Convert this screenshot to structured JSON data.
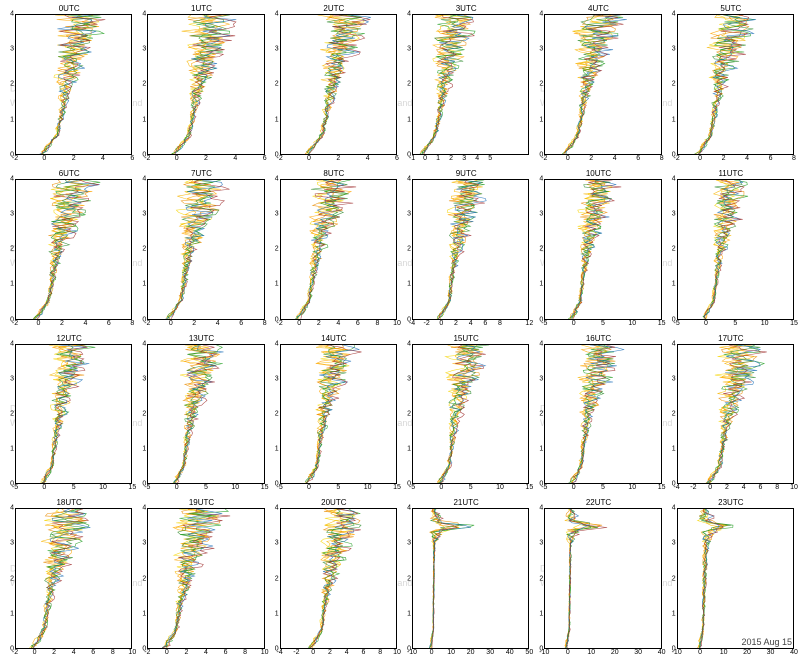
{
  "date_label": "2015 Aug 15",
  "watermark_text_line1": "Deutscher Wetterdienst",
  "watermark_text_line2": "Wetter und Klima aus einer Hand",
  "global": {
    "background_color": "#ffffff",
    "axis_color": "#000000",
    "title_fontsize": 8,
    "tick_fontsize": 7,
    "line_width": 0.5,
    "ylim": [
      0,
      4
    ],
    "yticks": [
      0,
      1,
      2,
      3,
      4
    ],
    "n_profiles": 8,
    "profile_colors": [
      "#f5d400",
      "#f7b500",
      "#ffa500",
      "#e98b00",
      "#2e8b2e",
      "#1f9d1f",
      "#1d6fb8",
      "#a03030"
    ]
  },
  "panels": [
    {
      "title": "0UTC",
      "xlim": [
        -2,
        6
      ],
      "xticks": [
        -2,
        0,
        2,
        4,
        6
      ],
      "spread": [
        0.4,
        0.3,
        0.35,
        0.6,
        1.1,
        1.8,
        2.4,
        2.9,
        3.1
      ],
      "base": [
        -0.2,
        0.8,
        1.1,
        1.3,
        1.5,
        1.8,
        2.1,
        2.3,
        2.5
      ]
    },
    {
      "title": "1UTC",
      "xlim": [
        -2,
        6
      ],
      "xticks": [
        -2,
        0,
        2,
        4,
        6
      ],
      "spread": [
        0.4,
        0.3,
        0.35,
        0.6,
        1.1,
        1.8,
        2.4,
        2.9,
        3.1
      ],
      "base": [
        -0.2,
        0.8,
        1.1,
        1.3,
        1.5,
        1.8,
        2.1,
        2.3,
        2.5
      ]
    },
    {
      "title": "2UTC",
      "xlim": [
        -2,
        6
      ],
      "xticks": [
        -2,
        0,
        2,
        4,
        6
      ],
      "spread": [
        0.4,
        0.3,
        0.35,
        0.6,
        1.1,
        1.8,
        2.4,
        2.9,
        3.1
      ],
      "base": [
        -0.2,
        0.8,
        1.1,
        1.3,
        1.5,
        1.8,
        2.1,
        2.3,
        2.5
      ]
    },
    {
      "title": "3UTC",
      "xlim": [
        -1,
        8
      ],
      "xticks": [
        -1,
        0,
        1,
        2,
        3,
        4,
        5
      ],
      "spread": [
        0.4,
        0.3,
        0.35,
        0.6,
        1.1,
        1.8,
        2.4,
        2.9,
        3.1
      ],
      "base": [
        -0.3,
        0.7,
        1.0,
        1.2,
        1.4,
        1.7,
        2.0,
        2.2,
        2.4
      ]
    },
    {
      "title": "4UTC",
      "xlim": [
        -2,
        8
      ],
      "xticks": [
        -2,
        0,
        2,
        4,
        6,
        8
      ],
      "spread": [
        0.5,
        0.35,
        0.4,
        0.7,
        1.2,
        2.0,
        2.7,
        3.3,
        3.6
      ],
      "base": [
        -0.3,
        0.8,
        1.1,
        1.3,
        1.6,
        1.9,
        2.3,
        2.6,
        2.9
      ]
    },
    {
      "title": "5UTC",
      "xlim": [
        -2,
        8
      ],
      "xticks": [
        -2,
        0,
        2,
        4,
        6,
        8
      ],
      "spread": [
        0.5,
        0.35,
        0.4,
        0.7,
        1.2,
        2.0,
        2.7,
        3.3,
        3.6
      ],
      "base": [
        -0.3,
        0.8,
        1.1,
        1.3,
        1.6,
        1.9,
        2.3,
        2.6,
        2.9
      ]
    },
    {
      "title": "6UTC",
      "xlim": [
        -2,
        8
      ],
      "xticks": [
        -2,
        0,
        2,
        4,
        6,
        8
      ],
      "spread": [
        0.5,
        0.35,
        0.4,
        0.7,
        1.3,
        2.1,
        2.8,
        3.4,
        3.7
      ],
      "base": [
        -0.3,
        0.8,
        1.1,
        1.3,
        1.6,
        2.0,
        2.4,
        2.7,
        3.0
      ]
    },
    {
      "title": "7UTC",
      "xlim": [
        -2,
        8
      ],
      "xticks": [
        -2,
        0,
        2,
        4,
        6,
        8
      ],
      "spread": [
        0.5,
        0.35,
        0.4,
        0.7,
        1.3,
        2.1,
        2.8,
        3.4,
        3.7
      ],
      "base": [
        -0.3,
        0.8,
        1.1,
        1.3,
        1.6,
        2.0,
        2.4,
        2.7,
        3.0
      ]
    },
    {
      "title": "8UTC",
      "xlim": [
        -2,
        10
      ],
      "xticks": [
        -2,
        0,
        2,
        4,
        6,
        8,
        10
      ],
      "spread": [
        0.6,
        0.4,
        0.45,
        0.8,
        1.5,
        2.4,
        3.2,
        3.9,
        4.2
      ],
      "base": [
        -0.3,
        0.9,
        1.2,
        1.5,
        1.8,
        2.2,
        2.7,
        3.1,
        3.4
      ]
    },
    {
      "title": "9UTC",
      "xlim": [
        -4,
        12
      ],
      "xticks": [
        -4,
        -2,
        0,
        2,
        4,
        6,
        8,
        12
      ],
      "spread": [
        0.7,
        0.5,
        0.5,
        0.9,
        1.7,
        2.7,
        3.6,
        4.4,
        4.8
      ],
      "base": [
        -0.4,
        1.0,
        1.3,
        1.6,
        2.0,
        2.5,
        3.0,
        3.5,
        3.8
      ]
    },
    {
      "title": "10UTC",
      "xlim": [
        -5,
        15
      ],
      "xticks": [
        -5,
        0,
        5,
        10,
        15
      ],
      "spread": [
        0.9,
        0.6,
        0.6,
        1.1,
        2.0,
        3.2,
        4.3,
        5.2,
        5.7
      ],
      "base": [
        -0.5,
        1.1,
        1.5,
        1.9,
        2.3,
        2.9,
        3.5,
        4.1,
        4.5
      ]
    },
    {
      "title": "11UTC",
      "xlim": [
        -5,
        15
      ],
      "xticks": [
        -5,
        0,
        5,
        10,
        15
      ],
      "spread": [
        0.9,
        0.6,
        0.6,
        1.1,
        2.0,
        3.2,
        4.3,
        5.2,
        5.7
      ],
      "base": [
        -0.5,
        1.1,
        1.5,
        1.9,
        2.3,
        2.9,
        3.5,
        4.1,
        4.5
      ]
    },
    {
      "title": "12UTC",
      "xlim": [
        -5,
        15
      ],
      "xticks": [
        -5,
        0,
        5,
        10,
        15
      ],
      "spread": [
        1.0,
        0.7,
        0.7,
        1.2,
        2.2,
        3.5,
        4.7,
        5.7,
        6.2
      ],
      "base": [
        -0.5,
        1.2,
        1.6,
        2.0,
        2.5,
        3.1,
        3.8,
        4.4,
        4.9
      ]
    },
    {
      "title": "13UTC",
      "xlim": [
        -5,
        15
      ],
      "xticks": [
        -5,
        0,
        5,
        10,
        15
      ],
      "spread": [
        1.0,
        0.7,
        0.7,
        1.2,
        2.2,
        3.5,
        4.7,
        5.7,
        6.2
      ],
      "base": [
        -0.5,
        1.2,
        1.6,
        2.0,
        2.5,
        3.1,
        3.8,
        4.4,
        4.9
      ]
    },
    {
      "title": "14UTC",
      "xlim": [
        -5,
        15
      ],
      "xticks": [
        -5,
        0,
        5,
        10,
        15
      ],
      "spread": [
        1.0,
        0.7,
        0.7,
        1.2,
        2.2,
        3.5,
        4.7,
        5.7,
        6.2
      ],
      "base": [
        -0.5,
        1.2,
        1.6,
        2.0,
        2.5,
        3.1,
        3.8,
        4.4,
        4.9
      ]
    },
    {
      "title": "15UTC",
      "xlim": [
        -5,
        15
      ],
      "xticks": [
        -5,
        0,
        5,
        10,
        15
      ],
      "spread": [
        1.0,
        0.7,
        0.7,
        1.2,
        2.2,
        3.5,
        4.7,
        5.7,
        6.2
      ],
      "base": [
        -0.5,
        1.2,
        1.6,
        2.0,
        2.5,
        3.1,
        3.8,
        4.4,
        4.9
      ]
    },
    {
      "title": "16UTC",
      "xlim": [
        -5,
        15
      ],
      "xticks": [
        -5,
        0,
        5,
        10,
        15
      ],
      "spread": [
        1.0,
        0.7,
        0.7,
        1.2,
        2.2,
        3.5,
        4.7,
        5.7,
        6.2
      ],
      "base": [
        -0.5,
        1.2,
        1.6,
        2.0,
        2.5,
        3.1,
        3.8,
        4.4,
        4.9
      ]
    },
    {
      "title": "17UTC",
      "xlim": [
        -4,
        10
      ],
      "xticks": [
        -4,
        -2,
        0,
        2,
        4,
        6,
        8,
        10
      ],
      "spread": [
        0.8,
        0.55,
        0.55,
        1.0,
        1.8,
        2.8,
        3.8,
        4.6,
        5.0
      ],
      "base": [
        -0.4,
        1.0,
        1.4,
        1.7,
        2.1,
        2.6,
        3.2,
        3.7,
        4.1
      ]
    },
    {
      "title": "18UTC",
      "xlim": [
        -2,
        10
      ],
      "xticks": [
        -2,
        0,
        2,
        4,
        6,
        8,
        10
      ],
      "spread": [
        0.7,
        0.5,
        0.5,
        0.9,
        1.6,
        2.5,
        3.4,
        4.1,
        4.5
      ],
      "base": [
        -0.3,
        0.9,
        1.2,
        1.5,
        1.9,
        2.3,
        2.8,
        3.3,
        3.6
      ]
    },
    {
      "title": "19UTC",
      "xlim": [
        -2,
        10
      ],
      "xticks": [
        -2,
        0,
        2,
        4,
        6,
        8,
        10
      ],
      "spread": [
        0.7,
        0.5,
        0.5,
        0.9,
        1.6,
        2.5,
        3.4,
        4.1,
        4.5
      ],
      "base": [
        -0.3,
        0.9,
        1.2,
        1.5,
        1.9,
        2.3,
        2.8,
        3.3,
        3.6
      ]
    },
    {
      "title": "20UTC",
      "xlim": [
        -4,
        10
      ],
      "xticks": [
        -4,
        -2,
        0,
        2,
        4,
        6,
        8,
        10
      ],
      "spread": [
        0.7,
        0.5,
        0.5,
        0.9,
        1.6,
        2.5,
        3.4,
        4.1,
        4.5
      ],
      "base": [
        -0.4,
        0.9,
        1.2,
        1.5,
        1.9,
        2.3,
        2.8,
        3.3,
        3.6
      ]
    },
    {
      "title": "21UTC",
      "xlim": [
        -10,
        50
      ],
      "xticks": [
        -10,
        0,
        10,
        20,
        30,
        40,
        50
      ],
      "spread": [
        1.5,
        0.6,
        0.6,
        0.6,
        0.7,
        0.8,
        1.0,
        12.0,
        2.0
      ],
      "base": [
        -1,
        0.5,
        0.6,
        0.7,
        0.8,
        0.9,
        1.0,
        3.0,
        1.2
      ],
      "spike_at": 0.875
    },
    {
      "title": "22UTC",
      "xlim": [
        -10,
        40
      ],
      "xticks": [
        -10,
        0,
        10,
        20,
        30,
        40
      ],
      "spread": [
        1.5,
        0.6,
        0.6,
        0.6,
        0.7,
        0.8,
        1.0,
        10.0,
        2.0
      ],
      "base": [
        -1,
        0.5,
        0.6,
        0.7,
        0.8,
        0.9,
        1.0,
        2.5,
        1.2
      ],
      "spike_at": 0.875
    },
    {
      "title": "23UTC",
      "xlim": [
        -10,
        40
      ],
      "xticks": [
        -10,
        0,
        10,
        20,
        30,
        40
      ],
      "spread": [
        1.5,
        1.0,
        1.2,
        1.4,
        1.7,
        2.0,
        2.5,
        9.0,
        3.0
      ],
      "base": [
        -1,
        0.8,
        1.0,
        1.2,
        1.5,
        1.8,
        2.2,
        3.0,
        2.0
      ],
      "spike_at": 0.875
    }
  ]
}
